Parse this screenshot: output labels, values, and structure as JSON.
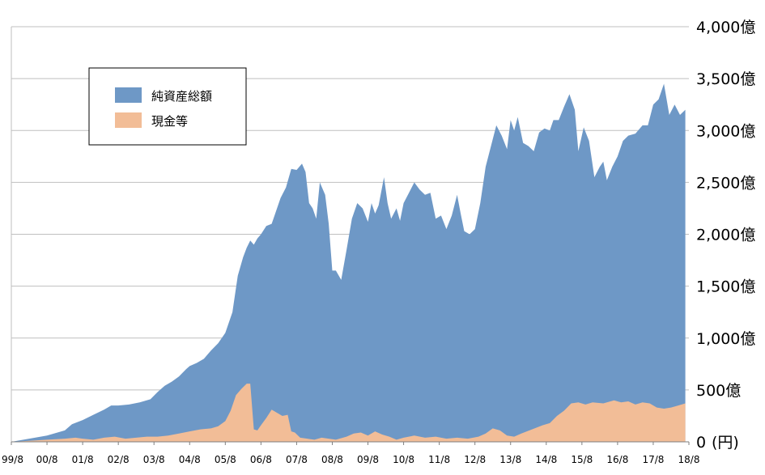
{
  "chart_data": {
    "type": "area",
    "title": "",
    "xlabel": "",
    "ylabel": "",
    "y_unit_label": "(円)",
    "ylim": [
      0,
      4000
    ],
    "y_ticks": [
      {
        "value": 0,
        "label": "0"
      },
      {
        "value": 500,
        "label": "500億"
      },
      {
        "value": 1000,
        "label": "1,000億"
      },
      {
        "value": 1500,
        "label": "1,500億"
      },
      {
        "value": 2000,
        "label": "2,000億"
      },
      {
        "value": 2500,
        "label": "2,500億"
      },
      {
        "value": 3000,
        "label": "3,000億"
      },
      {
        "value": 3500,
        "label": "3,500億"
      },
      {
        "value": 4000,
        "label": "4,000億"
      }
    ],
    "x_ticks": [
      {
        "t": 0,
        "label": "99/8"
      },
      {
        "t": 1,
        "label": "00/8"
      },
      {
        "t": 2,
        "label": "01/8"
      },
      {
        "t": 3,
        "label": "02/8"
      },
      {
        "t": 4,
        "label": "03/8"
      },
      {
        "t": 5,
        "label": "04/8"
      },
      {
        "t": 6,
        "label": "05/8"
      },
      {
        "t": 7,
        "label": "06/8"
      },
      {
        "t": 8,
        "label": "07/8"
      },
      {
        "t": 9,
        "label": "08/8"
      },
      {
        "t": 10,
        "label": "09/8"
      },
      {
        "t": 11,
        "label": "10/8"
      },
      {
        "t": 12,
        "label": "11/8"
      },
      {
        "t": 13,
        "label": "12/8"
      },
      {
        "t": 14,
        "label": "13/8"
      },
      {
        "t": 15,
        "label": "14/8"
      },
      {
        "t": 16,
        "label": "15/8"
      },
      {
        "t": 17,
        "label": "16/8"
      },
      {
        "t": 18,
        "label": "17/8"
      },
      {
        "t": 19,
        "label": "18/8"
      }
    ],
    "grid": true,
    "legend_position": "top-left",
    "series": [
      {
        "name": "純資産総額",
        "color": "#6e98c6",
        "points": [
          [
            0,
            0
          ],
          [
            0.5,
            30
          ],
          [
            1,
            60
          ],
          [
            1.5,
            110
          ],
          [
            1.7,
            170
          ],
          [
            2,
            210
          ],
          [
            2.3,
            260
          ],
          [
            2.6,
            310
          ],
          [
            2.8,
            350
          ],
          [
            3,
            350
          ],
          [
            3.3,
            360
          ],
          [
            3.6,
            380
          ],
          [
            3.9,
            410
          ],
          [
            4.1,
            480
          ],
          [
            4.3,
            540
          ],
          [
            4.5,
            580
          ],
          [
            4.7,
            630
          ],
          [
            4.9,
            700
          ],
          [
            5,
            730
          ],
          [
            5.2,
            760
          ],
          [
            5.4,
            800
          ],
          [
            5.6,
            880
          ],
          [
            5.8,
            950
          ],
          [
            6,
            1050
          ],
          [
            6.2,
            1250
          ],
          [
            6.35,
            1600
          ],
          [
            6.5,
            1780
          ],
          [
            6.6,
            1870
          ],
          [
            6.7,
            1940
          ],
          [
            6.8,
            1900
          ],
          [
            6.9,
            1960
          ],
          [
            7,
            2000
          ],
          [
            7.15,
            2080
          ],
          [
            7.3,
            2100
          ],
          [
            7.4,
            2200
          ],
          [
            7.55,
            2350
          ],
          [
            7.7,
            2450
          ],
          [
            7.85,
            2630
          ],
          [
            8,
            2620
          ],
          [
            8.15,
            2680
          ],
          [
            8.25,
            2600
          ],
          [
            8.35,
            2300
          ],
          [
            8.45,
            2250
          ],
          [
            8.55,
            2150
          ],
          [
            8.65,
            2500
          ],
          [
            8.8,
            2380
          ],
          [
            8.9,
            2100
          ],
          [
            9,
            1650
          ],
          [
            9.1,
            1650
          ],
          [
            9.25,
            1560
          ],
          [
            9.4,
            1850
          ],
          [
            9.55,
            2150
          ],
          [
            9.7,
            2300
          ],
          [
            9.85,
            2250
          ],
          [
            10,
            2120
          ],
          [
            10.1,
            2300
          ],
          [
            10.2,
            2200
          ],
          [
            10.3,
            2280
          ],
          [
            10.45,
            2550
          ],
          [
            10.55,
            2300
          ],
          [
            10.65,
            2150
          ],
          [
            10.8,
            2250
          ],
          [
            10.9,
            2130
          ],
          [
            11,
            2300
          ],
          [
            11.15,
            2400
          ],
          [
            11.3,
            2500
          ],
          [
            11.45,
            2430
          ],
          [
            11.6,
            2380
          ],
          [
            11.75,
            2400
          ],
          [
            11.9,
            2150
          ],
          [
            12.05,
            2180
          ],
          [
            12.2,
            2050
          ],
          [
            12.35,
            2180
          ],
          [
            12.5,
            2380
          ],
          [
            12.6,
            2200
          ],
          [
            12.7,
            2030
          ],
          [
            12.85,
            2000
          ],
          [
            13,
            2050
          ],
          [
            13.15,
            2300
          ],
          [
            13.3,
            2650
          ],
          [
            13.45,
            2850
          ],
          [
            13.6,
            3050
          ],
          [
            13.75,
            2950
          ],
          [
            13.9,
            2820
          ],
          [
            14,
            3100
          ],
          [
            14.1,
            3000
          ],
          [
            14.2,
            3130
          ],
          [
            14.35,
            2880
          ],
          [
            14.5,
            2850
          ],
          [
            14.65,
            2800
          ],
          [
            14.8,
            2980
          ],
          [
            14.95,
            3020
          ],
          [
            15.1,
            3000
          ],
          [
            15.2,
            3100
          ],
          [
            15.35,
            3100
          ],
          [
            15.5,
            3230
          ],
          [
            15.65,
            3350
          ],
          [
            15.8,
            3200
          ],
          [
            15.9,
            2800
          ],
          [
            16.05,
            3030
          ],
          [
            16.2,
            2900
          ],
          [
            16.35,
            2550
          ],
          [
            16.5,
            2650
          ],
          [
            16.6,
            2700
          ],
          [
            16.7,
            2520
          ],
          [
            16.85,
            2650
          ],
          [
            17,
            2750
          ],
          [
            17.15,
            2900
          ],
          [
            17.3,
            2950
          ],
          [
            17.5,
            2970
          ],
          [
            17.7,
            3050
          ],
          [
            17.85,
            3050
          ],
          [
            18,
            3250
          ],
          [
            18.15,
            3300
          ],
          [
            18.3,
            3450
          ],
          [
            18.45,
            3150
          ],
          [
            18.6,
            3250
          ],
          [
            18.75,
            3150
          ],
          [
            18.9,
            3200
          ]
        ]
      },
      {
        "name": "現金等",
        "color": "#f2bd97",
        "points": [
          [
            0,
            0
          ],
          [
            0.5,
            10
          ],
          [
            1,
            20
          ],
          [
            1.5,
            30
          ],
          [
            1.8,
            40
          ],
          [
            2,
            30
          ],
          [
            2.3,
            20
          ],
          [
            2.6,
            40
          ],
          [
            2.9,
            50
          ],
          [
            3.2,
            30
          ],
          [
            3.5,
            40
          ],
          [
            3.8,
            50
          ],
          [
            4.1,
            50
          ],
          [
            4.4,
            60
          ],
          [
            4.7,
            80
          ],
          [
            5,
            100
          ],
          [
            5.3,
            120
          ],
          [
            5.6,
            130
          ],
          [
            5.8,
            150
          ],
          [
            6,
            200
          ],
          [
            6.15,
            300
          ],
          [
            6.3,
            450
          ],
          [
            6.45,
            510
          ],
          [
            6.6,
            560
          ],
          [
            6.7,
            560
          ],
          [
            6.8,
            120
          ],
          [
            6.9,
            110
          ],
          [
            7,
            160
          ],
          [
            7.15,
            230
          ],
          [
            7.3,
            310
          ],
          [
            7.45,
            280
          ],
          [
            7.6,
            250
          ],
          [
            7.75,
            260
          ],
          [
            7.85,
            100
          ],
          [
            7.95,
            90
          ],
          [
            8.1,
            40
          ],
          [
            8.3,
            30
          ],
          [
            8.5,
            20
          ],
          [
            8.7,
            40
          ],
          [
            8.9,
            30
          ],
          [
            9.1,
            20
          ],
          [
            9.4,
            50
          ],
          [
            9.6,
            80
          ],
          [
            9.8,
            90
          ],
          [
            10,
            60
          ],
          [
            10.2,
            100
          ],
          [
            10.4,
            70
          ],
          [
            10.6,
            50
          ],
          [
            10.8,
            20
          ],
          [
            11,
            40
          ],
          [
            11.3,
            60
          ],
          [
            11.6,
            40
          ],
          [
            11.9,
            50
          ],
          [
            12.2,
            30
          ],
          [
            12.5,
            40
          ],
          [
            12.8,
            30
          ],
          [
            13.1,
            50
          ],
          [
            13.3,
            80
          ],
          [
            13.5,
            130
          ],
          [
            13.7,
            110
          ],
          [
            13.9,
            60
          ],
          [
            14.1,
            50
          ],
          [
            14.3,
            80
          ],
          [
            14.6,
            120
          ],
          [
            14.9,
            160
          ],
          [
            15.1,
            180
          ],
          [
            15.3,
            250
          ],
          [
            15.5,
            300
          ],
          [
            15.7,
            370
          ],
          [
            15.9,
            380
          ],
          [
            16.1,
            360
          ],
          [
            16.3,
            380
          ],
          [
            16.6,
            370
          ],
          [
            16.9,
            400
          ],
          [
            17.1,
            380
          ],
          [
            17.3,
            390
          ],
          [
            17.5,
            360
          ],
          [
            17.7,
            380
          ],
          [
            17.9,
            370
          ],
          [
            18.1,
            330
          ],
          [
            18.3,
            320
          ],
          [
            18.5,
            330
          ],
          [
            18.7,
            350
          ],
          [
            18.9,
            370
          ]
        ]
      }
    ]
  }
}
